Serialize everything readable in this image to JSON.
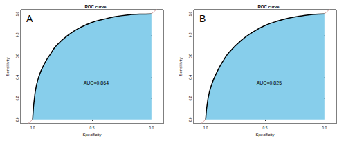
{
  "chart_data": [
    {
      "type": "line",
      "title": "ROC curve",
      "panel_label": "A",
      "annotation": "AUC=0.864",
      "xlabel": "Specificity",
      "ylabel": "Sensitivity",
      "x": [
        1.0,
        0.98,
        0.95,
        0.9,
        0.85,
        0.8,
        0.7,
        0.6,
        0.5,
        0.4,
        0.3,
        0.2,
        0.1,
        0.0
      ],
      "values": [
        0.0,
        0.25,
        0.4,
        0.53,
        0.62,
        0.7,
        0.8,
        0.87,
        0.92,
        0.95,
        0.975,
        0.99,
        0.997,
        1.0
      ],
      "color": "#87ceeb",
      "reference_line": {
        "x": [
          1.1,
          -0.1
        ],
        "values": [
          -0.1,
          1.1
        ],
        "color": "#d9a3a3"
      },
      "xlim": [
        1.1,
        -0.1
      ],
      "ylim": [
        -0.04,
        1.04
      ],
      "xticks": [
        {
          "value": 1,
          "label": "1.0"
        },
        {
          "value": 0.5,
          "label": "0.5"
        },
        {
          "value": 0,
          "label": "0.0"
        }
      ],
      "yticks": [
        {
          "value": 0,
          "label": "0.0"
        },
        {
          "value": 0.2,
          "label": "0.2"
        },
        {
          "value": 0.4,
          "label": "0.4"
        },
        {
          "value": 0.6,
          "label": "0.6"
        },
        {
          "value": 0.8,
          "label": "0.8"
        },
        {
          "value": 1,
          "label": "1.0"
        }
      ],
      "grid": false
    },
    {
      "type": "line",
      "title": "ROC curve",
      "panel_label": "B",
      "annotation": "AUC=0.825",
      "xlabel": "Specificity",
      "ylabel": "Sensitivity",
      "x": [
        1.0,
        0.98,
        0.95,
        0.9,
        0.85,
        0.8,
        0.7,
        0.6,
        0.5,
        0.4,
        0.3,
        0.2,
        0.1,
        0.0
      ],
      "values": [
        0.0,
        0.2,
        0.33,
        0.46,
        0.56,
        0.64,
        0.75,
        0.83,
        0.89,
        0.93,
        0.96,
        0.98,
        0.995,
        1.0
      ],
      "color": "#87ceeb",
      "reference_line": {
        "x": [
          1.1,
          -0.1
        ],
        "values": [
          -0.1,
          1.1
        ],
        "color": "#d9a3a3"
      },
      "xlim": [
        1.1,
        -0.1
      ],
      "ylim": [
        -0.04,
        1.04
      ],
      "xticks": [
        {
          "value": 1,
          "label": "1.0"
        },
        {
          "value": 0.5,
          "label": "0.5"
        },
        {
          "value": 0,
          "label": "0.0"
        }
      ],
      "yticks": [
        {
          "value": 0,
          "label": "0.0"
        },
        {
          "value": 0.2,
          "label": "0.2"
        },
        {
          "value": 0.4,
          "label": "0.4"
        },
        {
          "value": 0.6,
          "label": "0.6"
        },
        {
          "value": 0.8,
          "label": "0.8"
        },
        {
          "value": 1,
          "label": "1.0"
        }
      ],
      "grid": false
    }
  ]
}
